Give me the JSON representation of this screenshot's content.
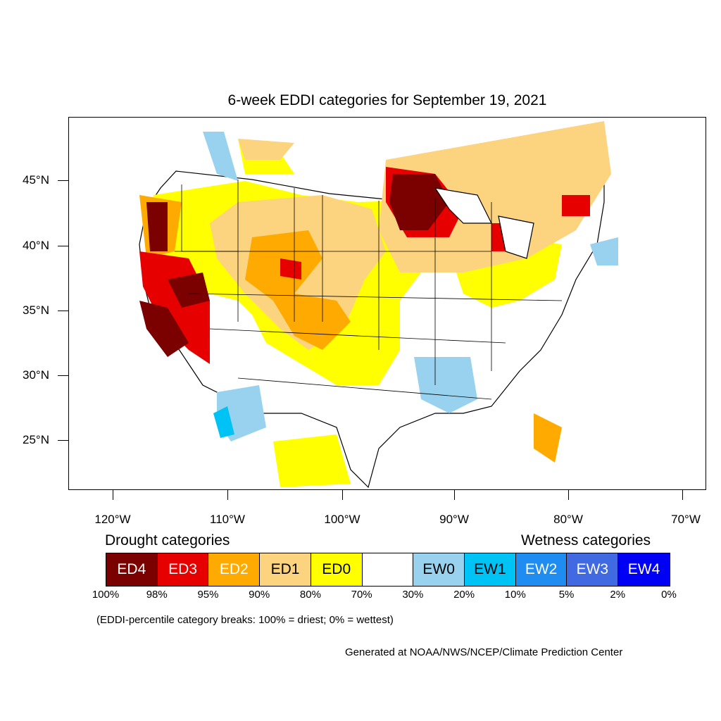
{
  "title": "6-week EDDI categories for September 19, 2021",
  "lat_labels": [
    "45°N",
    "40°N",
    "35°N",
    "30°N",
    "25°N"
  ],
  "lon_labels": [
    "120°W",
    "110°W",
    "100°W",
    "90°W",
    "80°W",
    "70°W"
  ],
  "legend": {
    "drought_heading": "Drought categories",
    "wetness_heading": "Wetness categories",
    "categories": [
      {
        "label": "ED4",
        "color": "#7b0000",
        "text_color": "#ffffff"
      },
      {
        "label": "ED3",
        "color": "#e60000",
        "text_color": "#ffffff"
      },
      {
        "label": "ED2",
        "color": "#ffaa00",
        "text_color": "#ffffff"
      },
      {
        "label": "ED1",
        "color": "#fcd37f",
        "text_color": "#000000"
      },
      {
        "label": "ED0",
        "color": "#ffff00",
        "text_color": "#000000"
      },
      {
        "label": "",
        "color": "#ffffff",
        "text_color": "#000000"
      },
      {
        "label": "EW0",
        "color": "#99d2ee",
        "text_color": "#000000"
      },
      {
        "label": "EW1",
        "color": "#00c3f5",
        "text_color": "#000000"
      },
      {
        "label": "EW2",
        "color": "#1e8cf0",
        "text_color": "#ffffff"
      },
      {
        "label": "EW3",
        "color": "#4169e1",
        "text_color": "#ffffff"
      },
      {
        "label": "EW4",
        "color": "#0000f5",
        "text_color": "#ffffff"
      }
    ],
    "breaks": [
      "100%",
      "98%",
      "95%",
      "90%",
      "80%",
      "70%",
      "30%",
      "20%",
      "10%",
      "5%",
      "2%",
      "0%"
    ]
  },
  "note": "(EDDI-percentile category breaks: 100% = driest; 0% = wettest)",
  "credit": "Generated at NOAA/NWS/NCEP/Climate Prediction Center"
}
